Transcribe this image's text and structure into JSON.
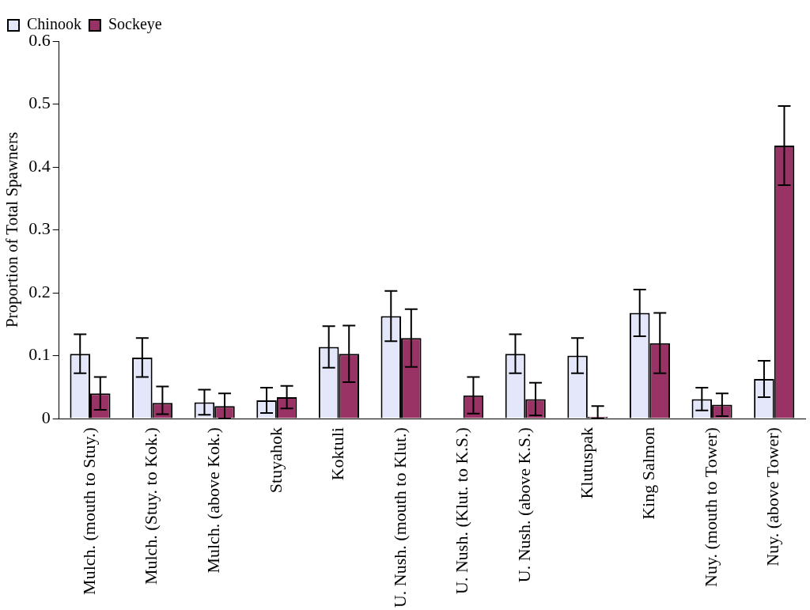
{
  "chart_data": {
    "type": "bar",
    "ylabel": "Proportion of Total Spawners",
    "categories": [
      "Mulch. (mouth to Stuy.)",
      "Mulch. (Stuy. to Kok.)",
      "Mulch. (above Kok.)",
      "Stuyahok",
      "Koktuli",
      "U. Nush. (mouth to Klut.)",
      "U. Nush. (Klut. to K.S.)",
      "U. Nush. (above K.S.)",
      "Klutuspak",
      "King Salmon",
      "Nuy. (mouth to Tower)",
      "Nuy. (above Tower)"
    ],
    "series": [
      {
        "name": "Chinook",
        "color": "#e4e6fa",
        "values": [
          0.103,
          0.097,
          0.026,
          0.029,
          0.114,
          0.163,
          0,
          0.103,
          0.1,
          0.168,
          0.031,
          0.063
        ],
        "errors": [
          0.031,
          0.031,
          0.02,
          0.02,
          0.033,
          0.04,
          null,
          0.031,
          0.028,
          0.037,
          0.018,
          0.029
        ]
      },
      {
        "name": "Sockeye",
        "color": "#993366",
        "values": [
          0.04,
          0.025,
          0.02,
          0.034,
          0.103,
          0.128,
          0.037,
          0.031,
          0.003,
          0.12,
          0.022,
          0.434
        ],
        "errors": [
          0.026,
          [
            0.007,
            0.051
          ],
          0.02,
          0.018,
          0.045,
          0.046,
          0.029,
          0.026,
          [
            0,
            0.02
          ],
          0.048,
          0.018,
          0.063
        ]
      }
    ],
    "ylim": [
      0,
      0.6
    ],
    "yticks": [
      0,
      0.1,
      0.2,
      0.3,
      0.4,
      0.5,
      0.6
    ],
    "grid": false,
    "legend": "top left"
  }
}
